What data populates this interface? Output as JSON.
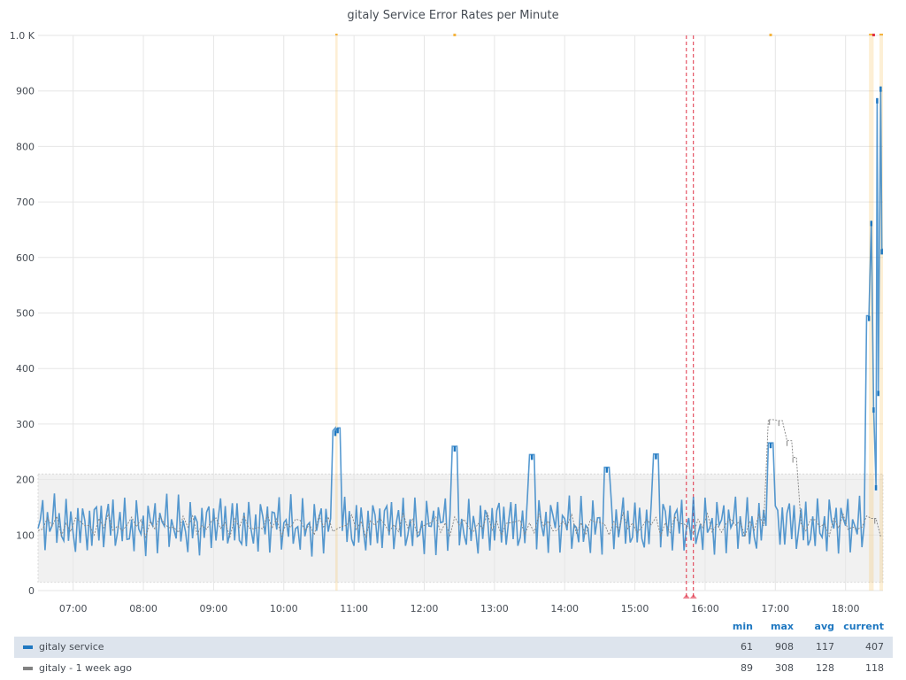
{
  "chart_data": {
    "type": "line",
    "title": "gitaly Service Error Rates per Minute",
    "x_tick_labels": [
      "07:00",
      "08:00",
      "09:00",
      "10:00",
      "11:00",
      "12:00",
      "13:00",
      "14:00",
      "15:00",
      "16:00",
      "17:00",
      "18:00"
    ],
    "y_tick_labels": [
      "0",
      "100",
      "200",
      "300",
      "400",
      "500",
      "600",
      "700",
      "800",
      "900",
      "1.0 K"
    ],
    "xlim": [
      "06:30",
      "18:32"
    ],
    "ylim": [
      0,
      1000
    ],
    "threshold_band": [
      15,
      210
    ],
    "grid": true,
    "legend_position": "bottom",
    "legend_columns": [
      "min",
      "max",
      "avg",
      "current"
    ],
    "series": [
      {
        "name": "gitaly service",
        "color": "#1f78c1",
        "min": "61",
        "max": "908",
        "avg": "117",
        "current": "407",
        "peaks": [
          {
            "x": "10:44",
            "y": 288
          },
          {
            "x": "10:46",
            "y": 293
          },
          {
            "x": "12:26",
            "y": 260
          },
          {
            "x": "13:32",
            "y": 245
          },
          {
            "x": "14:36",
            "y": 222
          },
          {
            "x": "15:18",
            "y": 246
          },
          {
            "x": "16:56",
            "y": 266
          },
          {
            "x": "18:20",
            "y": 495
          },
          {
            "x": "18:22",
            "y": 666
          },
          {
            "x": "18:24",
            "y": 330
          },
          {
            "x": "18:26",
            "y": 190
          },
          {
            "x": "18:27",
            "y": 887
          },
          {
            "x": "18:28",
            "y": 360
          },
          {
            "x": "18:30",
            "y": 908
          },
          {
            "x": "18:31",
            "y": 615
          }
        ]
      },
      {
        "name": "gitaly - 1 week ago",
        "color": "#828282",
        "min": "89",
        "max": "308",
        "avg": "128",
        "current": "118",
        "peaks": [
          {
            "x": "16:55",
            "y": 308
          },
          {
            "x": "17:03",
            "y": 306
          },
          {
            "x": "17:10",
            "y": 270
          },
          {
            "x": "17:15",
            "y": 240
          },
          {
            "x": "18:25",
            "y": 130
          }
        ]
      }
    ],
    "annotations": [
      {
        "kind": "region",
        "color": "#f5b43f",
        "x_start": "10:44",
        "x_end": "10:46"
      },
      {
        "kind": "region",
        "color": "#f5b43f",
        "x_start": "18:20",
        "x_end": "18:24"
      },
      {
        "kind": "region",
        "color": "#f5b43f",
        "x_start": "18:29",
        "x_end": "18:32"
      },
      {
        "kind": "marker",
        "color": "#f5b43f",
        "x": "12:26"
      },
      {
        "kind": "marker",
        "color": "#f5b43f",
        "x": "16:56"
      },
      {
        "kind": "marker",
        "color": "#e02f44",
        "x": "18:24"
      },
      {
        "kind": "line",
        "color": "#e02f44",
        "x": "15:44"
      },
      {
        "kind": "line",
        "color": "#e02f44",
        "x": "15:50"
      }
    ]
  },
  "legend": {
    "headers": {
      "min": "min",
      "max": "max",
      "avg": "avg",
      "current": "current"
    },
    "rows": [
      {
        "name": "gitaly service",
        "min": "61",
        "max": "908",
        "avg": "117",
        "current": "407",
        "color": "#1f78c1"
      },
      {
        "name": "gitaly - 1 week ago",
        "min": "89",
        "max": "308",
        "avg": "128",
        "current": "118",
        "color": "#828282"
      }
    ]
  }
}
